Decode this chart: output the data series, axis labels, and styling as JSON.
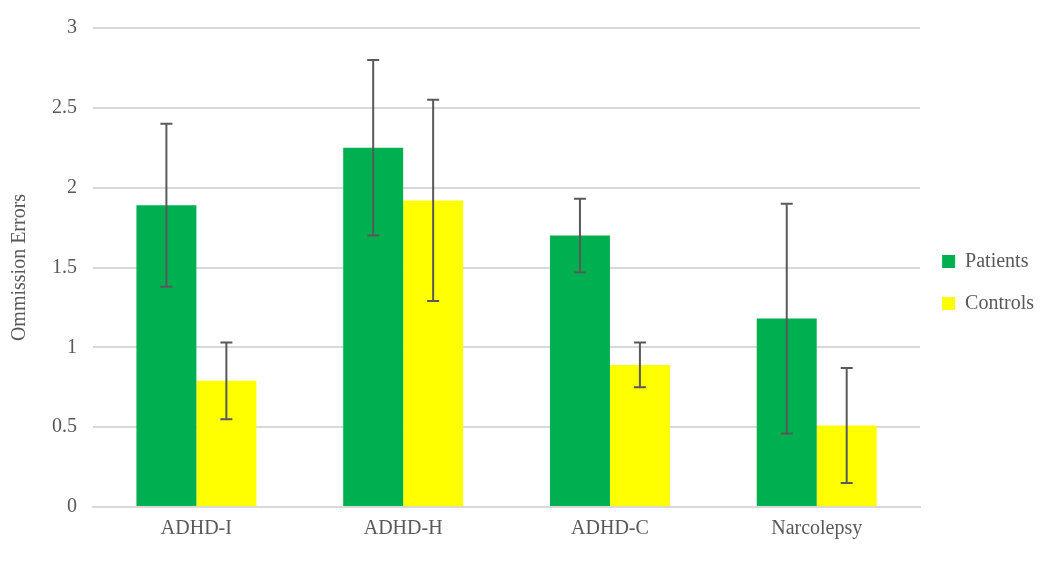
{
  "chart_data": {
    "type": "bar",
    "ylabel": "Ommission Errors",
    "categories": [
      "ADHD-I",
      "ADHD-H",
      "ADHD-C",
      "Narcolepsy"
    ],
    "series": [
      {
        "name": "Patients",
        "color": "#00b050",
        "values": [
          1.89,
          2.25,
          1.7,
          1.18
        ],
        "errors": [
          0.51,
          0.55,
          0.23,
          0.72
        ]
      },
      {
        "name": "Controls",
        "color": "#ffff00",
        "values": [
          0.79,
          1.92,
          0.89,
          0.51
        ],
        "errors": [
          0.24,
          0.63,
          0.14,
          0.36
        ]
      }
    ],
    "ylim": [
      0,
      3
    ],
    "yticks": [
      0,
      0.5,
      1,
      1.5,
      2,
      2.5,
      3
    ],
    "grid": "y",
    "legend": "right"
  }
}
